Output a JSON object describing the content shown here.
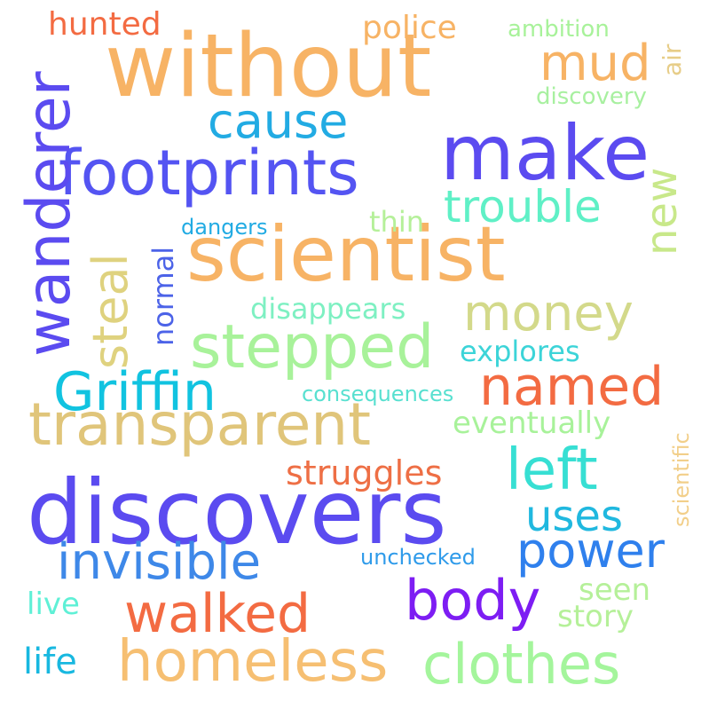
{
  "words": {
    "without": {
      "text": "without",
      "color": "#f7b365"
    },
    "scientist": {
      "text": "scientist",
      "color": "#f7b365"
    },
    "discovers": {
      "text": "discovers",
      "color": "#5b4bf0"
    },
    "make": {
      "text": "make",
      "color": "#5b4bf0"
    },
    "footprints": {
      "text": "footprints",
      "color": "#5454f2"
    },
    "wanderer": {
      "text": "wanderer",
      "color": "#5b4bf0"
    },
    "transparent": {
      "text": "transparent",
      "color": "#e0c57a"
    },
    "homeless": {
      "text": "homeless",
      "color": "#f6bf72"
    },
    "clothes": {
      "text": "clothes",
      "color": "#a4f59c"
    },
    "stepped": {
      "text": "stepped",
      "color": "#a8f29a"
    },
    "griffin": {
      "text": "Griffin",
      "color": "#11c3e0"
    },
    "named": {
      "text": "named",
      "color": "#f36b42"
    },
    "left": {
      "text": "left",
      "color": "#37dfd3"
    },
    "invisible": {
      "text": "invisible",
      "color": "#3e88e8"
    },
    "body": {
      "text": "body",
      "color": "#7d1df3"
    },
    "walked": {
      "text": "walked",
      "color": "#f36b42"
    },
    "money": {
      "text": "money",
      "color": "#d3d98a"
    },
    "trouble": {
      "text": "trouble",
      "color": "#5ff0c6"
    },
    "cause": {
      "text": "cause",
      "color": "#22abe3"
    },
    "mud": {
      "text": "mud",
      "color": "#f7b365"
    },
    "power": {
      "text": "power",
      "color": "#2f80ed"
    },
    "uses": {
      "text": "uses",
      "color": "#20b8df"
    },
    "steal": {
      "text": "steal",
      "color": "#dfd27f"
    },
    "new": {
      "text": "new",
      "color": "#c8e88a"
    },
    "struggles": {
      "text": "struggles",
      "color": "#ee6f45"
    },
    "eventually": {
      "text": "eventually",
      "color": "#a8f29a"
    },
    "explores": {
      "text": "explores",
      "color": "#3cd4d8"
    },
    "disappears": {
      "text": "disappears",
      "color": "#7ef0c2"
    },
    "police": {
      "text": "police",
      "color": "#f7b365"
    },
    "hunted": {
      "text": "hunted",
      "color": "#f36b42"
    },
    "ambition": {
      "text": "ambition",
      "color": "#a8f29a"
    },
    "discovery": {
      "text": "discovery",
      "color": "#a8f0a0"
    },
    "air": {
      "text": "air",
      "color": "#e7cd88"
    },
    "thin": {
      "text": "thin",
      "color": "#b5f099"
    },
    "dangers": {
      "text": "dangers",
      "color": "#22abe3"
    },
    "normal": {
      "text": "normal",
      "color": "#4c63e8"
    },
    "consequences": {
      "text": "consequences",
      "color": "#58e0d0"
    },
    "scientific": {
      "text": "scientific",
      "color": "#f2cf8a"
    },
    "unchecked": {
      "text": "unchecked",
      "color": "#2f9bea"
    },
    "seen": {
      "text": "seen",
      "color": "#b5f099"
    },
    "story": {
      "text": "story",
      "color": "#b5f099"
    },
    "live": {
      "text": "live",
      "color": "#5ff0d6"
    },
    "life": {
      "text": "life",
      "color": "#18b8e0"
    }
  }
}
